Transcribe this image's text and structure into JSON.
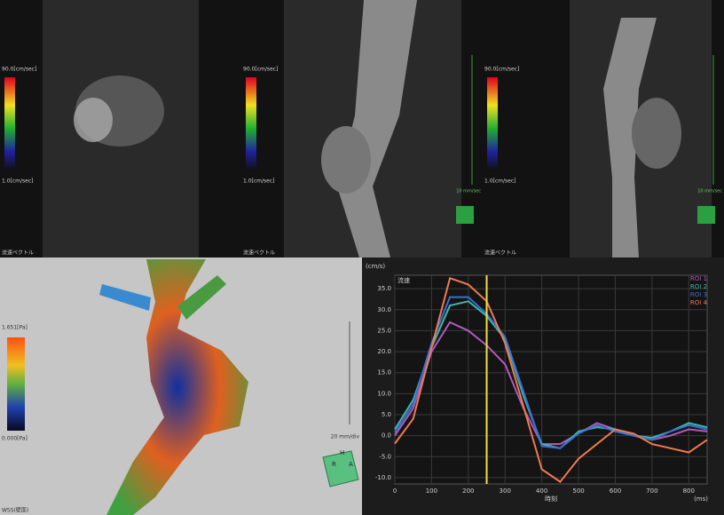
{
  "panels": [
    {
      "max_label": "90.0[cm/sec]",
      "min_label": "1.0[cm/sec]",
      "caption": "流速ベクトル"
    },
    {
      "max_label": "90.0[cm/sec]",
      "min_label": "1.0[cm/sec]",
      "caption": "流速ベクトル",
      "scale": "10 mm/sec"
    },
    {
      "max_label": "90.0[cm/sec]",
      "min_label": "1.0[cm/sec]",
      "caption": "流速ベクトル",
      "scale": "10 mm/sec"
    }
  ],
  "wss_panel": {
    "max_label": "1.651[Pa]",
    "min_label": "0.000[Pa]",
    "scale": "20 mm/div",
    "caption": "WSS(壁面)",
    "cube": [
      "H",
      "R",
      "A"
    ]
  },
  "chart_data": {
    "type": "line",
    "annotation": "流速",
    "ylabel": "(cm/s)",
    "xlabel": "時刻",
    "xunit": "(ms)",
    "x": [
      0,
      50,
      100,
      150,
      200,
      250,
      300,
      350,
      400,
      450,
      500,
      550,
      600,
      650,
      700,
      750,
      800,
      850
    ],
    "series": [
      {
        "name": "ROI 1",
        "color": "#b05ab8",
        "values": [
          0,
          6.5,
          20,
          27,
          25,
          21.5,
          17,
          6.5,
          -2,
          -2,
          0.5,
          3,
          1.5,
          0,
          -1,
          0,
          1.5,
          1
        ]
      },
      {
        "name": "ROI 2",
        "color": "#3fb8a8",
        "values": [
          1.5,
          8.5,
          21,
          31,
          32,
          28.5,
          23,
          9.5,
          -2,
          -3,
          1,
          2,
          1.5,
          0,
          -0.5,
          1,
          3,
          2
        ]
      },
      {
        "name": "ROI 3",
        "color": "#3a6fd0",
        "values": [
          0.7,
          7.5,
          22,
          33,
          33,
          29,
          23.5,
          10.5,
          -2.5,
          -3,
          0.5,
          2.5,
          1,
          0,
          -1,
          1,
          2.5,
          1.5
        ]
      },
      {
        "name": "ROI 4",
        "color": "#f07a50",
        "values": [
          -1.9,
          4,
          21,
          37.5,
          36,
          32,
          22,
          7,
          -8,
          -11,
          -5.5,
          -2,
          1.5,
          0.5,
          -2,
          -3,
          -4,
          -1
        ]
      }
    ],
    "cursor": 250,
    "cursor_color": "#f0e040",
    "xlim": [
      0,
      850
    ],
    "ylim": [
      -11.5,
      38.2
    ],
    "xticks": [
      0,
      100,
      200,
      300,
      400,
      500,
      600,
      700,
      800
    ],
    "yticks": [
      {
        "value": 35,
        "label": "35.0"
      },
      {
        "value": 30,
        "label": "30.0"
      },
      {
        "value": 25,
        "label": "25.0"
      },
      {
        "value": 20,
        "label": "20.0"
      },
      {
        "value": 15,
        "label": "15.0"
      },
      {
        "value": 10,
        "label": "10.0"
      },
      {
        "value": 5,
        "label": "5.0"
      },
      {
        "value": 0,
        "label": "0.0"
      },
      {
        "value": -5,
        "label": "-5.0"
      },
      {
        "value": -10,
        "label": "-10.0"
      }
    ],
    "grid": true
  }
}
